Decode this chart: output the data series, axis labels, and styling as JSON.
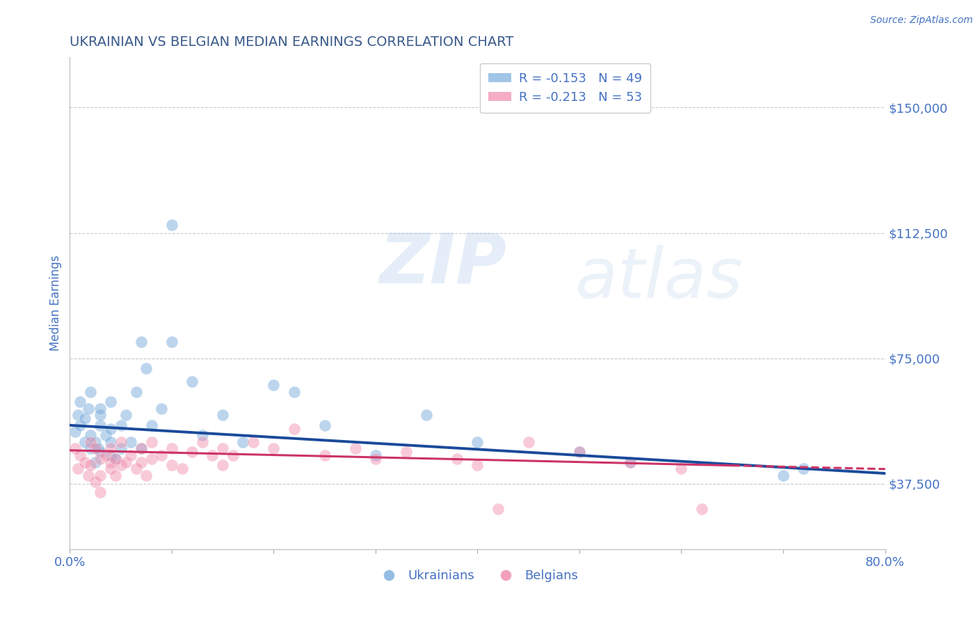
{
  "title": "UKRAINIAN VS BELGIAN MEDIAN EARNINGS CORRELATION CHART",
  "source": "Source: ZipAtlas.com",
  "ylabel": "Median Earnings",
  "xlim": [
    0.0,
    0.8
  ],
  "ylim": [
    18000,
    165000
  ],
  "yticks": [
    37500,
    75000,
    112500,
    150000
  ],
  "ytick_labels": [
    "$37,500",
    "$75,000",
    "$112,500",
    "$150,000"
  ],
  "xticks": [
    0.0,
    0.1,
    0.2,
    0.3,
    0.4,
    0.5,
    0.6,
    0.7,
    0.8
  ],
  "background_color": "#ffffff",
  "grid_color": "#c8c8d0",
  "title_color": "#3a5a8a",
  "tick_color": "#4472c4",
  "blue_color": "#7aaddc",
  "pink_color": "#f08aaa",
  "blue_line_color": "#1a4a9a",
  "pink_line_color": "#cc3366",
  "legend_r_blue": "R = -0.153",
  "legend_n_blue": "N = 49",
  "legend_r_pink": "R = -0.213",
  "legend_n_pink": "N = 53",
  "legend_label_blue": "Ukrainians",
  "legend_label_pink": "Belgians",
  "ukrainians_x": [
    0.005,
    0.008,
    0.01,
    0.01,
    0.015,
    0.015,
    0.018,
    0.02,
    0.02,
    0.02,
    0.025,
    0.025,
    0.028,
    0.03,
    0.03,
    0.03,
    0.03,
    0.035,
    0.04,
    0.04,
    0.04,
    0.04,
    0.045,
    0.05,
    0.05,
    0.055,
    0.06,
    0.065,
    0.07,
    0.07,
    0.075,
    0.08,
    0.09,
    0.1,
    0.1,
    0.12,
    0.13,
    0.15,
    0.17,
    0.2,
    0.22,
    0.25,
    0.3,
    0.35,
    0.4,
    0.5,
    0.55,
    0.7,
    0.72
  ],
  "ukrainians_y": [
    53000,
    58000,
    55000,
    62000,
    50000,
    57000,
    60000,
    48000,
    52000,
    65000,
    44000,
    50000,
    48000,
    55000,
    58000,
    47000,
    60000,
    52000,
    46000,
    50000,
    54000,
    62000,
    45000,
    48000,
    55000,
    58000,
    50000,
    65000,
    48000,
    80000,
    72000,
    55000,
    60000,
    80000,
    115000,
    68000,
    52000,
    58000,
    50000,
    67000,
    65000,
    55000,
    46000,
    58000,
    50000,
    47000,
    44000,
    40000,
    42000
  ],
  "belgians_x": [
    0.005,
    0.008,
    0.01,
    0.015,
    0.018,
    0.02,
    0.02,
    0.025,
    0.025,
    0.03,
    0.03,
    0.03,
    0.035,
    0.04,
    0.04,
    0.04,
    0.045,
    0.045,
    0.05,
    0.05,
    0.055,
    0.06,
    0.065,
    0.07,
    0.07,
    0.075,
    0.08,
    0.08,
    0.09,
    0.1,
    0.1,
    0.11,
    0.12,
    0.13,
    0.14,
    0.15,
    0.15,
    0.16,
    0.18,
    0.2,
    0.22,
    0.25,
    0.28,
    0.3,
    0.33,
    0.38,
    0.4,
    0.42,
    0.45,
    0.5,
    0.55,
    0.6,
    0.62
  ],
  "belgians_y": [
    48000,
    42000,
    46000,
    44000,
    40000,
    50000,
    43000,
    48000,
    38000,
    45000,
    40000,
    35000,
    46000,
    44000,
    42000,
    48000,
    40000,
    45000,
    43000,
    50000,
    44000,
    46000,
    42000,
    48000,
    44000,
    40000,
    45000,
    50000,
    46000,
    48000,
    43000,
    42000,
    47000,
    50000,
    46000,
    48000,
    43000,
    46000,
    50000,
    48000,
    54000,
    46000,
    48000,
    45000,
    47000,
    45000,
    43000,
    30000,
    50000,
    47000,
    44000,
    42000,
    30000
  ]
}
